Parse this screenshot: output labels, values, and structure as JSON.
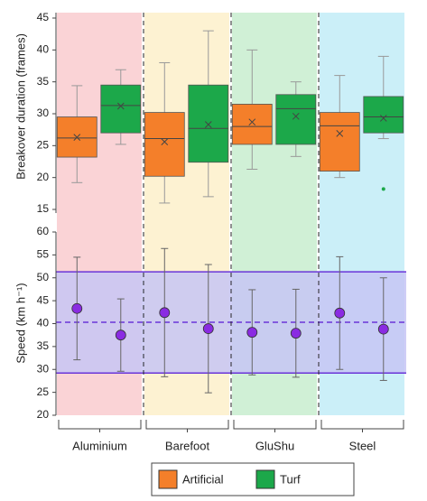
{
  "chart_data": [
    {
      "type": "box",
      "ylabel": "Breakover duration (frames)",
      "ylim": [
        15,
        45
      ],
      "yticks": [
        15,
        20,
        25,
        30,
        35,
        40,
        45
      ],
      "whisker_color": "#999999",
      "series": [
        {
          "name": "Artificial",
          "color": "#f47f2a",
          "whisker_low": [
            19.2,
            16,
            21.3,
            20
          ],
          "q1": [
            23.2,
            20.2,
            25.2,
            21
          ],
          "median": [
            26.2,
            26.1,
            28,
            28.1
          ],
          "q3": [
            29.5,
            30.2,
            31.5,
            30.2
          ],
          "whisker_high": [
            34.4,
            38,
            40,
            36
          ],
          "mean": [
            26.3,
            25.6,
            28.7,
            26.9
          ]
        },
        {
          "name": "Turf",
          "color": "#1ca84a",
          "whisker_low": [
            25.2,
            17,
            23.3,
            26.1
          ],
          "q1": [
            27,
            22.4,
            25.2,
            27
          ],
          "median": [
            31.3,
            27.7,
            30.8,
            29.5
          ],
          "q3": [
            34.5,
            34.5,
            33,
            32.7
          ],
          "whisker_high": [
            36.9,
            43,
            35,
            39
          ],
          "mean": [
            31.2,
            28.3,
            29.6,
            29.3
          ],
          "outliers": [
            [],
            [],
            [],
            [
              18.2
            ]
          ]
        }
      ]
    },
    {
      "type": "errorbar",
      "ylabel": "Speed (km h⁻¹)",
      "ylim": [
        20,
        60
      ],
      "yticks": [
        20,
        25,
        30,
        35,
        40,
        45,
        50,
        55,
        60
      ],
      "categories": [
        "Aluminium",
        "Barefoot",
        "GluShu",
        "Steel"
      ],
      "category_colors": [
        "#fad3d6",
        "#fdf2d2",
        "#d0f0d6",
        "#cbeff8"
      ],
      "band": {
        "lower": 29.2,
        "upper": 51.3,
        "mean": 40.3,
        "color": "#6a35d8",
        "fill": "#c7c6f4"
      },
      "series": [
        {
          "color": "#8a2be2",
          "values": [
            43.3,
            42.4,
            38.1,
            42.3
          ],
          "errors": [
            11.2,
            14,
            9.3,
            12.3
          ]
        },
        {
          "color": "#8a2be2",
          "values": [
            37.5,
            38.9,
            37.9,
            38.8
          ],
          "errors": [
            7.9,
            14,
            9.6,
            11.2
          ]
        }
      ]
    }
  ]
}
